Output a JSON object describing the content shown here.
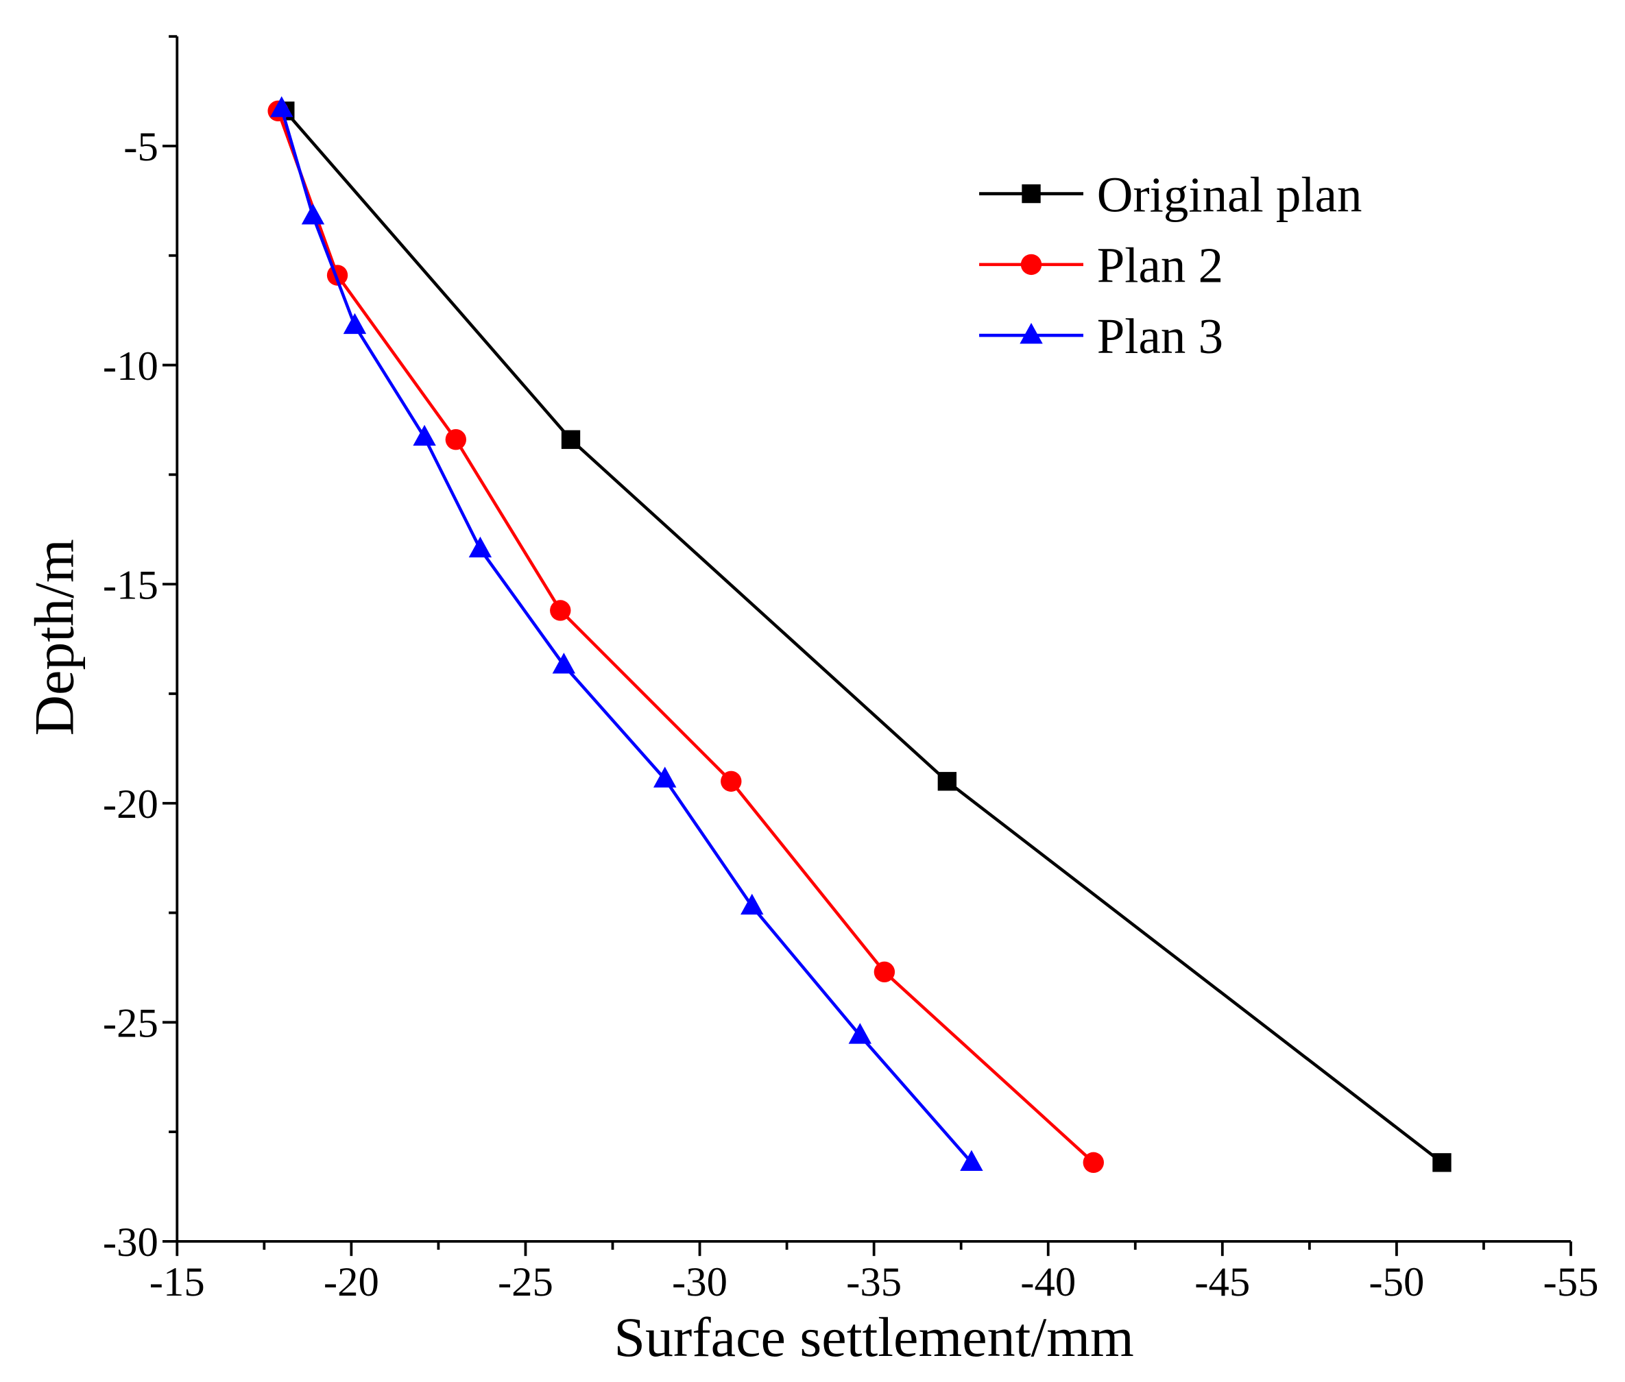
{
  "chart_data": {
    "type": "line",
    "title": "",
    "xlabel": "Surface settlement/mm",
    "ylabel": "Depth/m",
    "xlim": [
      -15,
      -55
    ],
    "ylim": [
      -30,
      -2.5
    ],
    "xticks": [
      -15,
      -20,
      -25,
      -30,
      -35,
      -40,
      -45,
      -50,
      -55
    ],
    "yticks": [
      -5,
      -10,
      -15,
      -20,
      -25,
      -30
    ],
    "xtick_labels": [
      "-15",
      "-20",
      "-25",
      "-30",
      "-35",
      "-40",
      "-45",
      "-50",
      "-55"
    ],
    "ytick_labels": [
      "-5",
      "-10",
      "-15",
      "-20",
      "-25",
      "-30"
    ],
    "grid": false,
    "legend_position": "top-right",
    "series": [
      {
        "name": "Original plan",
        "color": "#000000",
        "marker": "square",
        "x": [
          -18.1,
          -26.3,
          -37.1,
          -51.3
        ],
        "y": [
          -4.2,
          -11.7,
          -19.5,
          -28.2
        ]
      },
      {
        "name": "Plan 2",
        "color": "#ff0000",
        "marker": "circle",
        "x": [
          -17.9,
          -19.6,
          -23.0,
          -26.0,
          -30.9,
          -35.3,
          -41.3
        ],
        "y": [
          -4.2,
          -7.95,
          -11.7,
          -15.6,
          -19.5,
          -23.85,
          -28.2
        ]
      },
      {
        "name": "Plan 3",
        "color": "#0000ff",
        "marker": "triangle",
        "x": [
          -18.0,
          -18.9,
          -20.1,
          -22.1,
          -23.7,
          -26.1,
          -29.0,
          -31.5,
          -34.6,
          -37.8
        ],
        "y": [
          -4.15,
          -6.6,
          -9.1,
          -11.65,
          -14.2,
          -16.85,
          -19.45,
          -22.35,
          -25.3,
          -28.2
        ]
      }
    ]
  }
}
